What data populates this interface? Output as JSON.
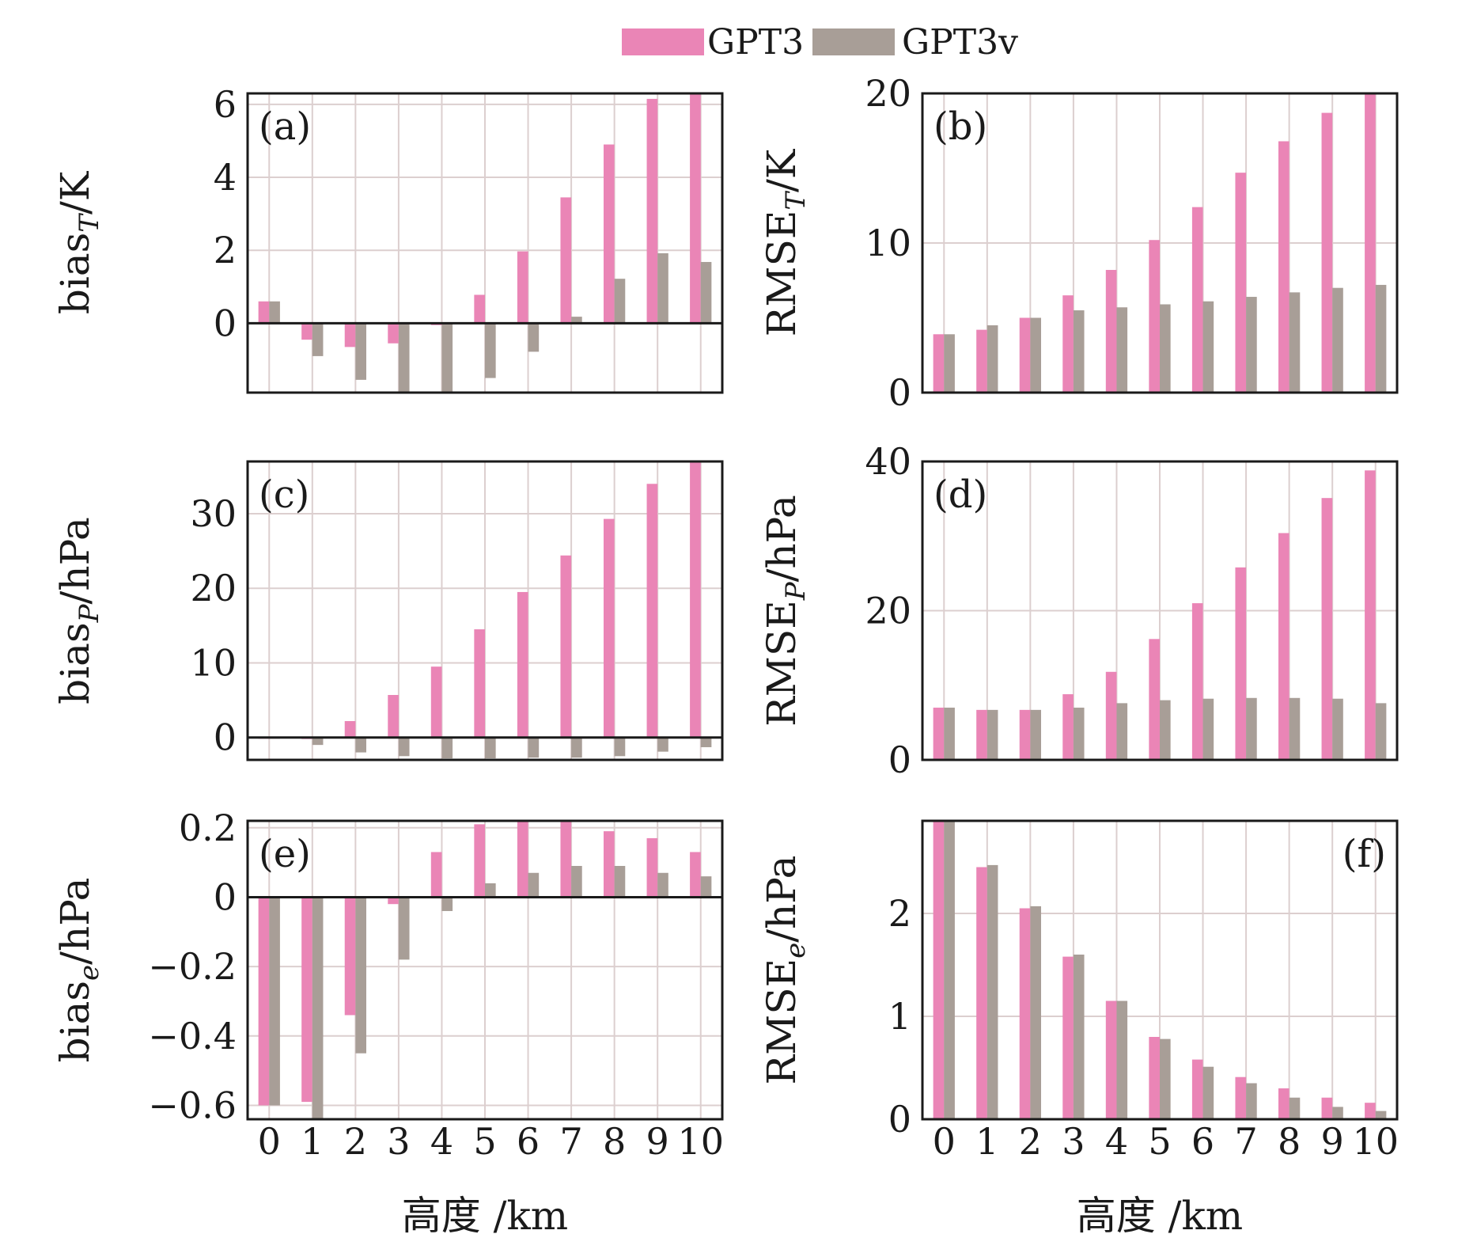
{
  "chart_data": {
    "type": "bar",
    "legend": {
      "entries": [
        {
          "name": "GPT3",
          "color": "#ea85b6"
        },
        {
          "name": "GPT3v",
          "color": "#a89e97"
        }
      ],
      "placement": "top-center"
    },
    "categories": [
      "0",
      "1",
      "2",
      "3",
      "4",
      "5",
      "6",
      "7",
      "8",
      "9",
      "10"
    ],
    "xlabel": "高度 /km",
    "panels": [
      {
        "id": "a",
        "label": "(a)",
        "label_position": "top-left",
        "ylabel_main": "bias",
        "ylabel_sub": "T",
        "ylabel_unit": "/K",
        "sub_italic": true,
        "ylim": [
          -1.9,
          6.3
        ],
        "yticks": [
          {
            "v": 0,
            "t": "0"
          },
          {
            "v": 2,
            "t": "2"
          },
          {
            "v": 4,
            "t": "4"
          },
          {
            "v": 6,
            "t": "6"
          }
        ],
        "zero_line": true,
        "show_xticks": false,
        "series": [
          {
            "name": "GPT3",
            "values": [
              0.6,
              -0.45,
              -0.65,
              -0.55,
              -0.05,
              0.78,
              1.97,
              3.45,
              4.9,
              6.15,
              6.3
            ]
          },
          {
            "name": "GPT3v",
            "values": [
              0.6,
              -0.9,
              -1.55,
              -1.9,
              -1.9,
              -1.5,
              -0.78,
              0.18,
              1.22,
              1.92,
              1.68
            ]
          }
        ]
      },
      {
        "id": "b",
        "label": "(b)",
        "label_position": "top-left",
        "ylabel_main": "RMSE",
        "ylabel_sub": "T",
        "ylabel_unit": "/K",
        "sub_italic": true,
        "ylim": [
          0,
          20
        ],
        "yticks": [
          {
            "v": 0,
            "t": "0"
          },
          {
            "v": 10,
            "t": "10"
          },
          {
            "v": 20,
            "t": "20"
          }
        ],
        "zero_line": false,
        "show_xticks": false,
        "series": [
          {
            "name": "GPT3",
            "values": [
              3.9,
              4.2,
              5.0,
              6.5,
              8.2,
              10.2,
              12.4,
              14.7,
              16.8,
              18.7,
              20.0
            ]
          },
          {
            "name": "GPT3v",
            "values": [
              3.9,
              4.5,
              5.0,
              5.5,
              5.7,
              5.9,
              6.1,
              6.4,
              6.7,
              7.0,
              7.2
            ]
          }
        ]
      },
      {
        "id": "c",
        "label": "(c)",
        "label_position": "top-left",
        "ylabel_main": "bias",
        "ylabel_sub": "P",
        "ylabel_unit": "/hPa",
        "sub_italic": true,
        "ylim": [
          -3,
          37
        ],
        "yticks": [
          {
            "v": 0,
            "t": "0"
          },
          {
            "v": 10,
            "t": "10"
          },
          {
            "v": 20,
            "t": "20"
          },
          {
            "v": 30,
            "t": "30"
          }
        ],
        "zero_line": true,
        "show_xticks": false,
        "series": [
          {
            "name": "GPT3",
            "values": [
              0.0,
              -0.2,
              2.2,
              5.7,
              9.5,
              14.5,
              19.5,
              24.4,
              29.3,
              34.0,
              37.0
            ]
          },
          {
            "name": "GPT3v",
            "values": [
              0.0,
              -1.0,
              -2.0,
              -2.5,
              -2.8,
              -2.8,
              -2.7,
              -2.7,
              -2.5,
              -1.9,
              -1.3
            ]
          }
        ]
      },
      {
        "id": "d",
        "label": "(d)",
        "label_position": "top-left",
        "ylabel_main": "RMSE",
        "ylabel_sub": "P",
        "ylabel_unit": "/hPa",
        "sub_italic": true,
        "ylim": [
          0,
          40
        ],
        "yticks": [
          {
            "v": 0,
            "t": "0"
          },
          {
            "v": 20,
            "t": "20"
          },
          {
            "v": 40,
            "t": "40"
          }
        ],
        "zero_line": false,
        "show_xticks": false,
        "series": [
          {
            "name": "GPT3",
            "values": [
              7.0,
              6.7,
              6.7,
              8.8,
              11.8,
              16.2,
              21.0,
              25.8,
              30.4,
              35.1,
              38.8
            ]
          },
          {
            "name": "GPT3v",
            "values": [
              7.0,
              6.7,
              6.7,
              7.0,
              7.6,
              8.0,
              8.2,
              8.3,
              8.3,
              8.2,
              7.6
            ]
          }
        ]
      },
      {
        "id": "e",
        "label": "(e)",
        "label_position": "top-left",
        "ylabel_main": "bias",
        "ylabel_sub": "e",
        "ylabel_unit": "/hPa",
        "sub_italic": true,
        "ylim": [
          -0.64,
          0.22
        ],
        "yticks": [
          {
            "v": -0.6,
            "t": "−0.6"
          },
          {
            "v": -0.4,
            "t": "−0.4"
          },
          {
            "v": -0.2,
            "t": "−0.2"
          },
          {
            "v": 0,
            "t": "0"
          },
          {
            "v": 0.2,
            "t": "0.2"
          }
        ],
        "zero_line": true,
        "show_xticks": true,
        "series": [
          {
            "name": "GPT3",
            "values": [
              -0.6,
              -0.59,
              -0.34,
              -0.02,
              0.13,
              0.21,
              0.22,
              0.22,
              0.19,
              0.17,
              0.13
            ]
          },
          {
            "name": "GPT3v",
            "values": [
              -0.6,
              -0.64,
              -0.45,
              -0.18,
              -0.04,
              0.04,
              0.07,
              0.09,
              0.09,
              0.07,
              0.06
            ]
          }
        ]
      },
      {
        "id": "f",
        "label": "(f)",
        "label_position": "top-right",
        "ylabel_main": "RMSE",
        "ylabel_sub": "e",
        "ylabel_unit": "/hPa",
        "sub_italic": true,
        "ylim": [
          0,
          2.9
        ],
        "yticks": [
          {
            "v": 0,
            "t": "0"
          },
          {
            "v": 1,
            "t": "1"
          },
          {
            "v": 2,
            "t": "2"
          }
        ],
        "zero_line": false,
        "show_xticks": true,
        "series": [
          {
            "name": "GPT3",
            "values": [
              2.9,
              2.45,
              2.05,
              1.58,
              1.15,
              0.8,
              0.58,
              0.41,
              0.3,
              0.21,
              0.16
            ]
          },
          {
            "name": "GPT3v",
            "values": [
              2.9,
              2.47,
              2.07,
              1.6,
              1.15,
              0.78,
              0.51,
              0.35,
              0.21,
              0.12,
              0.08
            ]
          }
        ]
      }
    ]
  }
}
